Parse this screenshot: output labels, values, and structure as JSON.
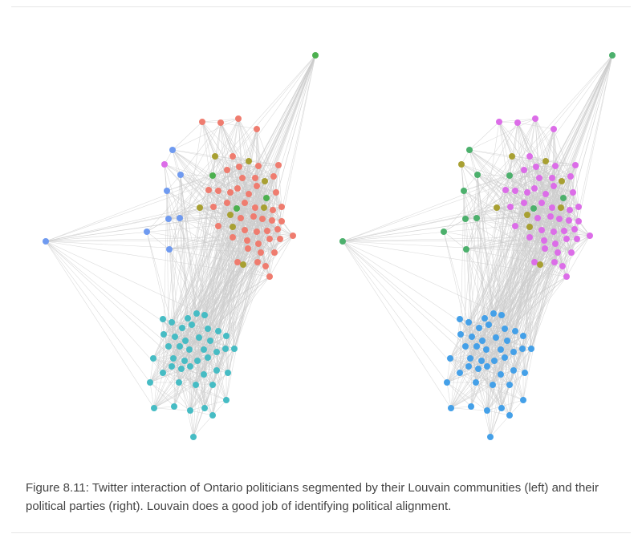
{
  "figure": {
    "caption": "Figure 8.11: Twitter interaction of Ontario politicians segmented by their Louvain communities (left) and their political parties (right). Louvain does a good job of identifying political alignment.",
    "edge_color": "#cccccc",
    "panels": [
      {
        "id": "louvain-communities",
        "position": "left",
        "community_colors": {
          "A": "#ef7c6f",
          "B": "#46bcc4",
          "C": "#6f9af0",
          "D": "#4cb04f",
          "E": "#a8a032",
          "F": "#dc6de8"
        }
      },
      {
        "id": "political-parties",
        "position": "right",
        "community_colors": {
          "A": "#dc6de8",
          "B": "#44a0e8",
          "C": "#4cb06c",
          "D": "#4cb06c",
          "E": "#a8a032",
          "F": "#a8a032"
        }
      }
    ]
  }
}
